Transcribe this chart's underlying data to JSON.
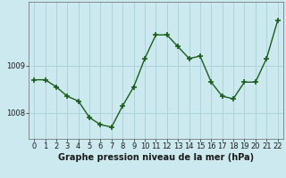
{
  "x": [
    0,
    1,
    2,
    3,
    4,
    5,
    6,
    7,
    8,
    9,
    10,
    11,
    12,
    13,
    14,
    15,
    16,
    17,
    18,
    19,
    20,
    21,
    22
  ],
  "y": [
    1008.7,
    1008.7,
    1008.55,
    1008.35,
    1008.25,
    1007.9,
    1007.75,
    1007.7,
    1008.15,
    1008.55,
    1009.15,
    1009.65,
    1009.65,
    1009.4,
    1009.15,
    1009.2,
    1008.65,
    1008.35,
    1008.3,
    1008.65,
    1008.65,
    1009.15,
    1009.95
  ],
  "line_color": "#1a5c1a",
  "marker": "+",
  "marker_size": 4,
  "marker_linewidth": 1.2,
  "bg_color": "#cce9f0",
  "grid_color": "#aacfd8",
  "xlabel": "Graphe pression niveau de la mer (hPa)",
  "xlabel_fontsize": 7,
  "tick_label_fontsize": 6,
  "ylim_min": 1007.45,
  "ylim_max": 1010.35,
  "yticks": [
    1008,
    1009
  ],
  "linewidth": 1.0
}
